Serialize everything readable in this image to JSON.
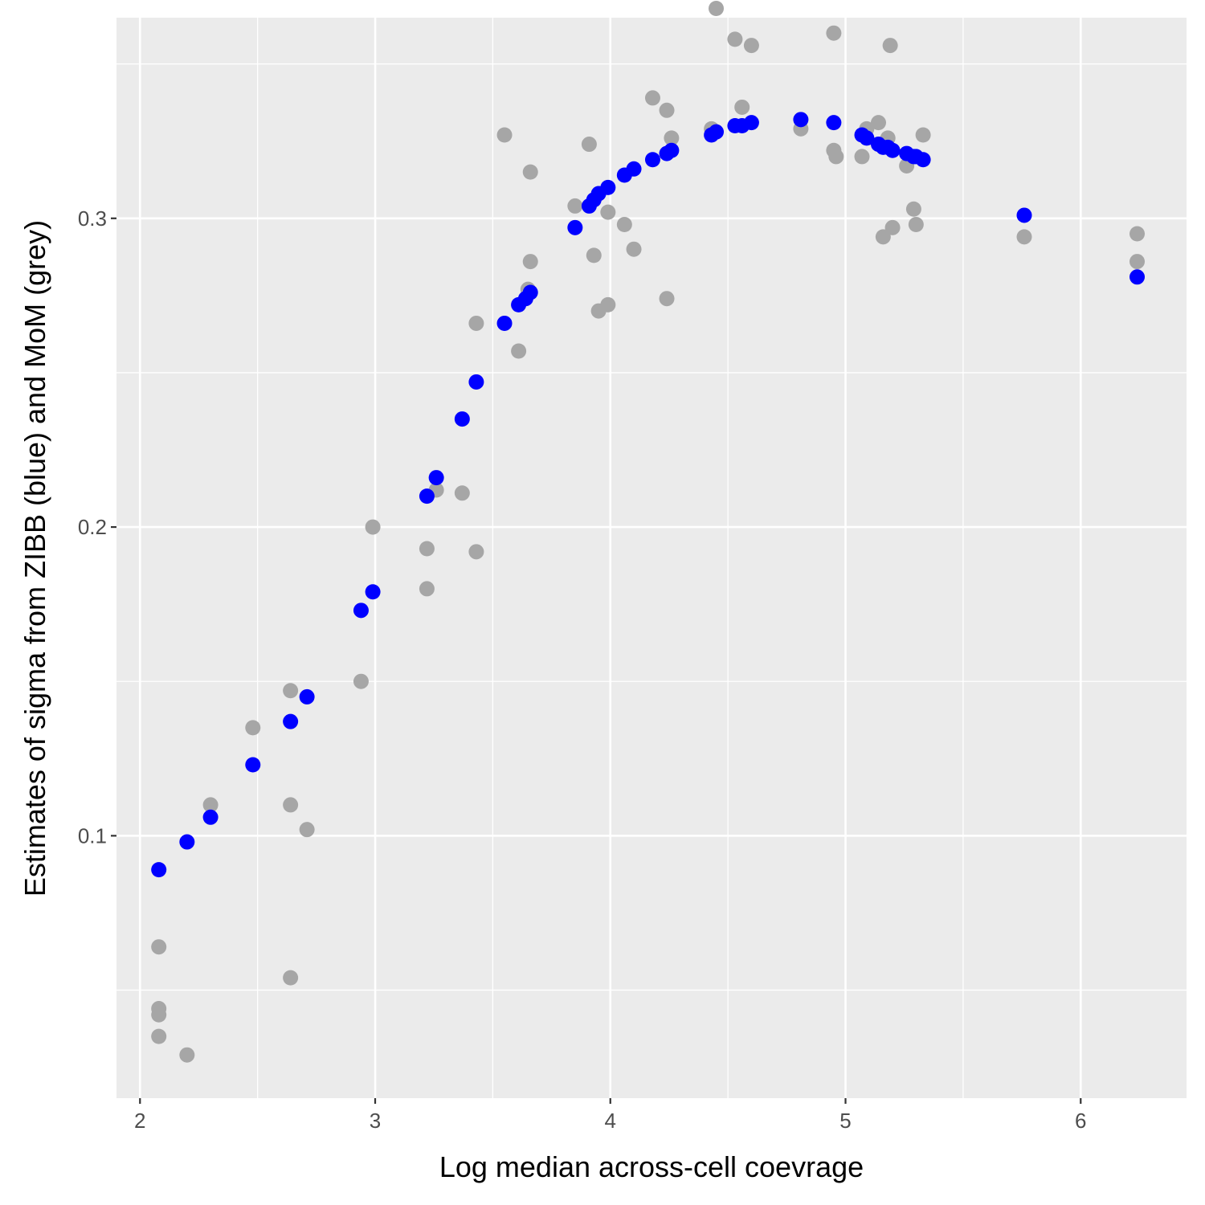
{
  "chart_data": {
    "type": "scatter",
    "title": "",
    "xlabel": "Log median across-cell coevrage",
    "ylabel": "Estimates of sigma from ZIBB (blue) and MoM (grey)",
    "xlim": [
      1.9,
      6.45
    ],
    "ylim": [
      0.015,
      0.365
    ],
    "x_ticks": [
      2,
      3,
      4,
      5,
      6
    ],
    "x_tick_labels": [
      "2",
      "3",
      "4",
      "5",
      "6"
    ],
    "y_ticks": [
      0.1,
      0.2,
      0.3
    ],
    "y_tick_labels": [
      "0.1",
      "0.2",
      "0.3"
    ],
    "grid": true,
    "legend": "none",
    "colors": {
      "panel_background": "#EBEBEB",
      "grid": "#FFFFFF",
      "zibb": "#0000FF",
      "mom": "#A6A6A6"
    },
    "series": [
      {
        "color": "#A6A6A6",
        "points": [
          [
            2.08,
            0.064
          ],
          [
            2.08,
            0.044
          ],
          [
            2.08,
            0.042
          ],
          [
            2.08,
            0.035
          ],
          [
            2.2,
            0.029
          ],
          [
            2.3,
            0.11
          ],
          [
            2.48,
            0.135
          ],
          [
            2.64,
            0.147
          ],
          [
            2.64,
            0.11
          ],
          [
            2.64,
            0.054
          ],
          [
            2.71,
            0.102
          ],
          [
            2.94,
            0.15
          ],
          [
            2.99,
            0.2
          ],
          [
            3.22,
            0.193
          ],
          [
            3.22,
            0.18
          ],
          [
            3.26,
            0.212
          ],
          [
            3.37,
            0.211
          ],
          [
            3.43,
            0.266
          ],
          [
            3.43,
            0.192
          ],
          [
            3.55,
            0.327
          ],
          [
            3.61,
            0.257
          ],
          [
            3.65,
            0.277
          ],
          [
            3.66,
            0.315
          ],
          [
            3.66,
            0.286
          ],
          [
            3.85,
            0.304
          ],
          [
            3.91,
            0.324
          ],
          [
            3.93,
            0.288
          ],
          [
            3.95,
            0.27
          ],
          [
            3.99,
            0.302
          ],
          [
            3.99,
            0.272
          ],
          [
            4.06,
            0.298
          ],
          [
            4.1,
            0.29
          ],
          [
            4.18,
            0.339
          ],
          [
            4.24,
            0.335
          ],
          [
            4.24,
            0.274
          ],
          [
            4.26,
            0.326
          ],
          [
            4.43,
            0.329
          ],
          [
            4.45,
            0.368
          ],
          [
            4.53,
            0.358
          ],
          [
            4.56,
            0.336
          ],
          [
            4.6,
            0.356
          ],
          [
            4.81,
            0.329
          ],
          [
            4.95,
            0.36
          ],
          [
            4.95,
            0.322
          ],
          [
            4.96,
            0.32
          ],
          [
            5.07,
            0.32
          ],
          [
            5.09,
            0.329
          ],
          [
            5.14,
            0.331
          ],
          [
            5.16,
            0.294
          ],
          [
            5.18,
            0.326
          ],
          [
            5.19,
            0.356
          ],
          [
            5.2,
            0.297
          ],
          [
            5.26,
            0.317
          ],
          [
            5.29,
            0.303
          ],
          [
            5.3,
            0.298
          ],
          [
            5.33,
            0.327
          ],
          [
            5.76,
            0.294
          ],
          [
            6.24,
            0.295
          ],
          [
            6.24,
            0.286
          ]
        ]
      },
      {
        "color": "#0000FF",
        "points": [
          [
            2.08,
            0.089
          ],
          [
            2.2,
            0.098
          ],
          [
            2.3,
            0.106
          ],
          [
            2.48,
            0.123
          ],
          [
            2.64,
            0.137
          ],
          [
            2.71,
            0.145
          ],
          [
            2.94,
            0.173
          ],
          [
            2.99,
            0.179
          ],
          [
            3.22,
            0.21
          ],
          [
            3.26,
            0.216
          ],
          [
            3.37,
            0.235
          ],
          [
            3.43,
            0.247
          ],
          [
            3.55,
            0.266
          ],
          [
            3.61,
            0.272
          ],
          [
            3.64,
            0.274
          ],
          [
            3.66,
            0.276
          ],
          [
            3.85,
            0.297
          ],
          [
            3.91,
            0.304
          ],
          [
            3.93,
            0.306
          ],
          [
            3.95,
            0.308
          ],
          [
            3.99,
            0.31
          ],
          [
            4.06,
            0.314
          ],
          [
            4.1,
            0.316
          ],
          [
            4.18,
            0.319
          ],
          [
            4.24,
            0.321
          ],
          [
            4.26,
            0.322
          ],
          [
            4.43,
            0.327
          ],
          [
            4.45,
            0.328
          ],
          [
            4.53,
            0.33
          ],
          [
            4.56,
            0.33
          ],
          [
            4.6,
            0.331
          ],
          [
            4.81,
            0.332
          ],
          [
            4.95,
            0.331
          ],
          [
            5.07,
            0.327
          ],
          [
            5.09,
            0.326
          ],
          [
            5.14,
            0.324
          ],
          [
            5.16,
            0.323
          ],
          [
            5.18,
            0.323
          ],
          [
            5.2,
            0.322
          ],
          [
            5.26,
            0.321
          ],
          [
            5.29,
            0.32
          ],
          [
            5.3,
            0.32
          ],
          [
            5.33,
            0.319
          ],
          [
            5.76,
            0.301
          ],
          [
            6.24,
            0.281
          ]
        ]
      }
    ]
  }
}
